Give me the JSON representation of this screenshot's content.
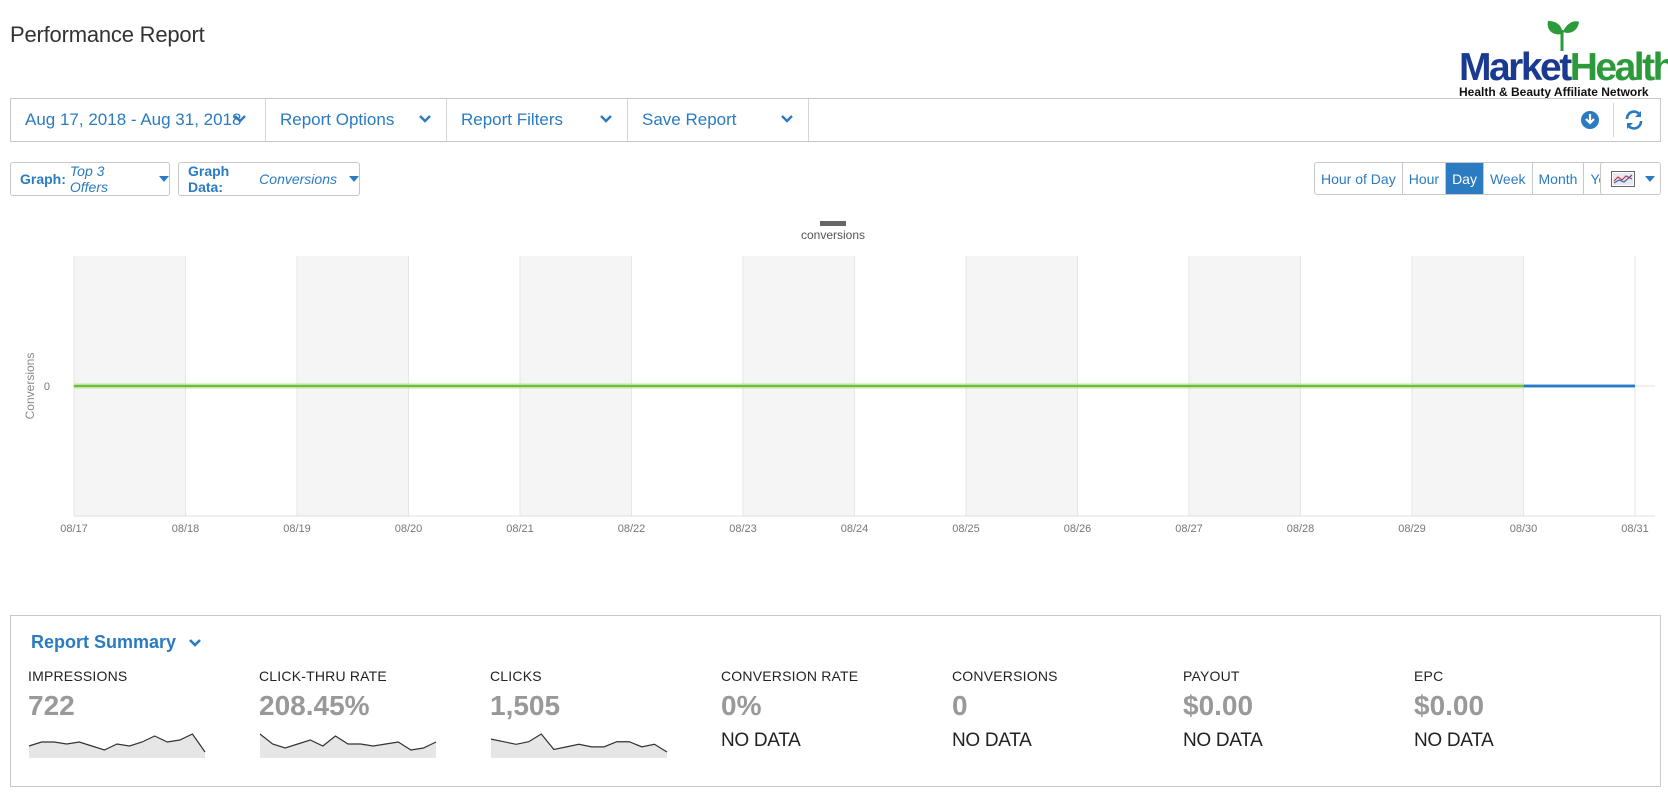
{
  "page": {
    "title": "Performance Report"
  },
  "logo": {
    "brand_part1": "Market",
    "brand_part2": "Health",
    "tagline": "Health & Beauty Affiliate Network"
  },
  "toolbar": {
    "date_range": "Aug 17, 2018 - Aug 31, 2018",
    "report_options": "Report Options",
    "report_filters": "Report Filters",
    "save_report": "Save Report",
    "download_icon": "download-circle-icon",
    "refresh_icon": "refresh-icon"
  },
  "controls": {
    "graph_label": "Graph:",
    "graph_value": "Top 3 Offers",
    "graph_data_label": "Graph Data:",
    "graph_data_value": "Conversions",
    "granularity": [
      "Hour of Day",
      "Hour",
      "Day",
      "Week",
      "Month",
      "Year"
    ],
    "granularity_selected": "Day",
    "chart_type_icon": "chart-thumbnail-icon"
  },
  "chart_data": {
    "type": "line",
    "legend": [
      "conversions"
    ],
    "legend_position": "top-center",
    "ylabel": "Conversions",
    "xlabel": "",
    "yticks": [
      "0"
    ],
    "x": [
      "08/17",
      "08/18",
      "08/19",
      "08/20",
      "08/21",
      "08/22",
      "08/23",
      "08/24",
      "08/25",
      "08/26",
      "08/27",
      "08/28",
      "08/29",
      "08/30",
      "08/31"
    ],
    "series": [
      {
        "name": "conversions",
        "values": [
          0,
          0,
          0,
          0,
          0,
          0,
          0,
          0,
          0,
          0,
          0,
          0,
          0,
          0,
          0
        ]
      }
    ],
    "colors": {
      "line_main": "#6bbf3f",
      "line_last": "#2a7bc1",
      "band": "#f5f5f5"
    },
    "alternating_bands": true
  },
  "summary": {
    "title": "Report Summary",
    "metrics": [
      {
        "label": "IMPRESSIONS",
        "value": "722",
        "sparkline": [
          3,
          5,
          5,
          4,
          5,
          3,
          1,
          4,
          3,
          5,
          8,
          5,
          6,
          9,
          0
        ]
      },
      {
        "label": "CLICK-THRU RATE",
        "value": "208.45%",
        "sparkline": [
          9,
          4,
          2,
          4,
          6,
          3,
          8,
          4,
          4,
          3,
          4,
          5,
          1,
          2,
          5
        ]
      },
      {
        "label": "CLICKS",
        "value": "1,505",
        "sparkline": [
          5,
          4,
          3,
          4,
          7,
          1,
          2,
          3,
          2,
          2,
          4,
          4,
          2,
          3,
          0
        ]
      },
      {
        "label": "CONVERSION RATE",
        "value": "0%",
        "nodata": "NO DATA"
      },
      {
        "label": "CONVERSIONS",
        "value": "0",
        "nodata": "NO DATA"
      },
      {
        "label": "PAYOUT",
        "value": "$0.00",
        "nodata": "NO DATA"
      },
      {
        "label": "EPC",
        "value": "$0.00",
        "nodata": "NO DATA"
      }
    ]
  }
}
